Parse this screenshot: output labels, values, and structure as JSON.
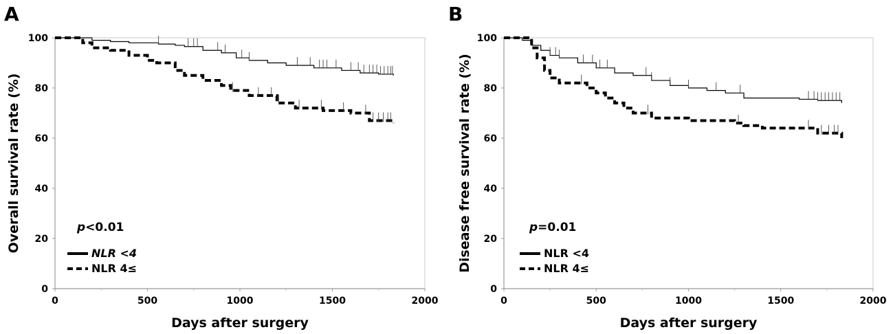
{
  "chart_data": [
    {
      "type": "line",
      "panel_label": "A",
      "xlabel": "Days after surgery",
      "ylabel": "Overall survival rate (%)",
      "xlim": [
        0,
        2000
      ],
      "ylim": [
        0,
        100
      ],
      "xticks": [
        "0",
        "500",
        "1000",
        "1500",
        "2000"
      ],
      "yticks": [
        "0",
        "20",
        "40",
        "60",
        "80",
        "100"
      ],
      "pvalue": {
        "symbol": "p",
        "text": "<0.01"
      },
      "legend_position": "bottom-left",
      "series": [
        {
          "name": "NLR <4",
          "style": "solid",
          "x": [
            0,
            140,
            200,
            300,
            400,
            560,
            650,
            700,
            800,
            900,
            980,
            1050,
            1150,
            1250,
            1400,
            1500,
            1550,
            1650,
            1750,
            1830
          ],
          "y": [
            100,
            100,
            99,
            98.5,
            98,
            97.5,
            97,
            96.5,
            95,
            94,
            92,
            91,
            90,
            89,
            88,
            88,
            87,
            86,
            85.5,
            85
          ]
        },
        {
          "name": "NLR 4≤",
          "style": "dashed",
          "x": [
            0,
            100,
            150,
            200,
            300,
            400,
            500,
            550,
            650,
            700,
            800,
            900,
            950,
            1050,
            1200,
            1300,
            1450,
            1600,
            1700,
            1830
          ],
          "y": [
            100,
            100,
            98,
            96,
            95,
            93,
            91,
            90,
            87,
            85,
            83,
            81,
            79,
            77,
            74,
            72,
            71,
            70,
            67,
            66
          ]
        }
      ],
      "censor_marks": {
        "NLR <4": [
          560,
          720,
          750,
          770,
          880,
          920,
          1010,
          1050,
          1310,
          1380,
          1430,
          1450,
          1470,
          1520,
          1600,
          1640,
          1670,
          1700,
          1720,
          1740,
          1760,
          1780,
          1800,
          1815,
          1825
        ],
        "NLR 4≤": [
          960,
          1100,
          1170,
          1210,
          1320,
          1440,
          1560,
          1680,
          1720,
          1750,
          1775,
          1800,
          1815
        ]
      }
    },
    {
      "type": "line",
      "panel_label": "B",
      "xlabel": "Days after surgery",
      "ylabel": "Disease free survival rate (%)",
      "xlim": [
        0,
        2000
      ],
      "ylim": [
        0,
        100
      ],
      "xticks": [
        "0",
        "500",
        "1000",
        "1500",
        "2000"
      ],
      "yticks": [
        "0",
        "20",
        "40",
        "60",
        "80",
        "100"
      ],
      "pvalue": {
        "symbol": "p",
        "text": "=0.01"
      },
      "legend_position": "bottom-left",
      "series": [
        {
          "name": "NLR <4",
          "style": "solid",
          "x": [
            0,
            60,
            100,
            150,
            200,
            250,
            300,
            400,
            500,
            600,
            700,
            800,
            900,
            1000,
            1100,
            1200,
            1280,
            1300,
            1500,
            1600,
            1700,
            1830
          ],
          "y": [
            100,
            100,
            99,
            97,
            95,
            93,
            92,
            90,
            88,
            86,
            85,
            83,
            81,
            80,
            79,
            78,
            78,
            76,
            76,
            75.5,
            75,
            74
          ]
        },
        {
          "name": "NLR 4≤",
          "style": "dashed",
          "x": [
            0,
            100,
            150,
            180,
            220,
            250,
            300,
            400,
            450,
            500,
            550,
            600,
            650,
            700,
            800,
            1000,
            1200,
            1250,
            1300,
            1400,
            1600,
            1700,
            1830
          ],
          "y": [
            100,
            100,
            96,
            92,
            87,
            84,
            82,
            82,
            80,
            78,
            76,
            74,
            72,
            70,
            68,
            67,
            67,
            66,
            65,
            64,
            64,
            62,
            60
          ]
        }
      ],
      "censor_marks": {
        "NLR <4": [
          250,
          280,
          300,
          430,
          480,
          520,
          560,
          770,
          800,
          900,
          1000,
          1150,
          1280,
          1650,
          1680,
          1700,
          1720,
          1740,
          1760,
          1780,
          1800,
          1820
        ],
        "NLR 4≤": [
          420,
          780,
          1270,
          1650,
          1720,
          1760,
          1790,
          1810
        ]
      }
    }
  ]
}
